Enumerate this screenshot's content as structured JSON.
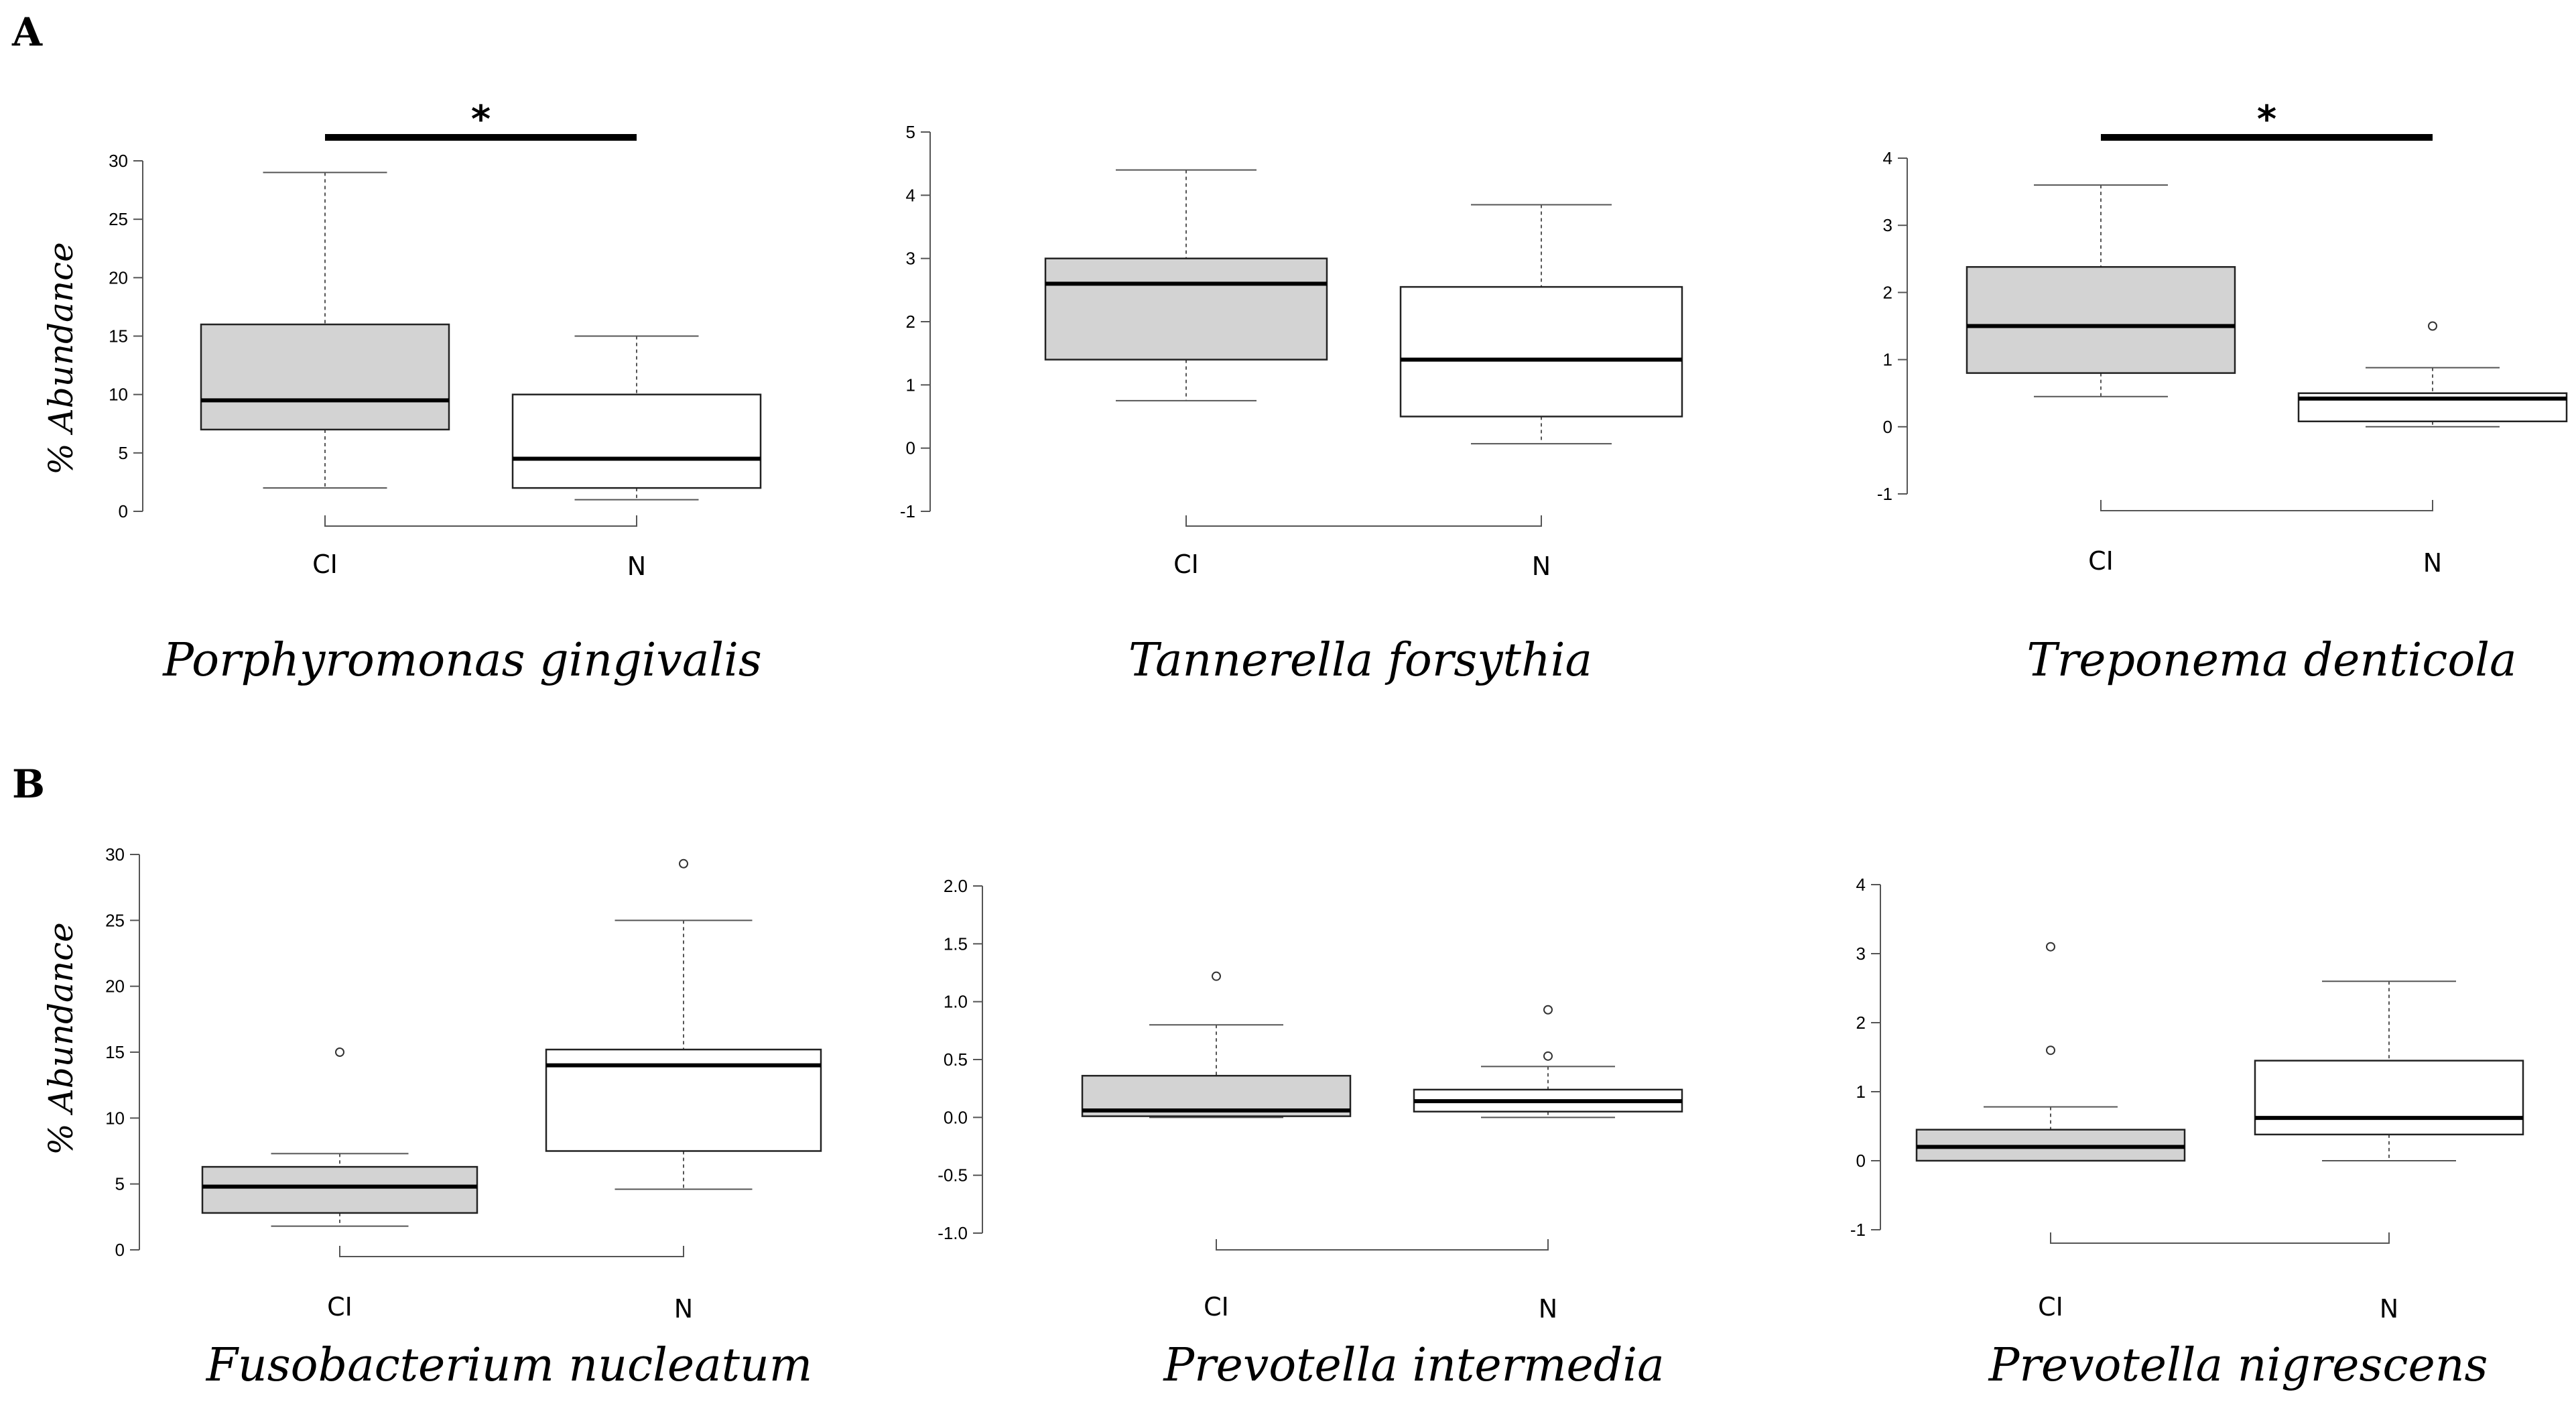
{
  "figure": {
    "panel_a": "A",
    "panel_b": "B"
  },
  "chart_data": [
    {
      "type": "boxplot",
      "panel": "A",
      "title": "Porphyromonas gingivalis",
      "ylabel": "% Abundance",
      "ylim": [
        0,
        30
      ],
      "yticks": [
        0,
        5,
        10,
        15,
        20,
        25,
        30
      ],
      "categories": [
        "CI",
        "N"
      ],
      "boxes": [
        {
          "name": "CI",
          "fill": "#d3d3d3",
          "min": 2,
          "q1": 7,
          "median": 9.5,
          "q3": 16,
          "max": 29,
          "outliers": []
        },
        {
          "name": "N",
          "fill": "#ffffff",
          "min": 1,
          "q1": 2,
          "median": 4.5,
          "q3": 10,
          "max": 15,
          "outliers": []
        }
      ],
      "significance": "*"
    },
    {
      "type": "boxplot",
      "panel": "A",
      "title": "Tannerella forsythia",
      "ylabel": "",
      "ylim": [
        -1,
        5
      ],
      "yticks": [
        -1,
        0,
        1,
        2,
        3,
        4,
        5
      ],
      "categories": [
        "CI",
        "N"
      ],
      "boxes": [
        {
          "name": "CI",
          "fill": "#d3d3d3",
          "min": 0.75,
          "q1": 1.4,
          "median": 2.6,
          "q3": 3.0,
          "max": 4.4,
          "outliers": []
        },
        {
          "name": "N",
          "fill": "#ffffff",
          "min": 0.07,
          "q1": 0.5,
          "median": 1.4,
          "q3": 2.55,
          "max": 3.85,
          "outliers": []
        }
      ],
      "significance": ""
    },
    {
      "type": "boxplot",
      "panel": "A",
      "title": "Treponema denticola",
      "ylabel": "",
      "ylim": [
        -1,
        4
      ],
      "yticks": [
        -1,
        0,
        1,
        2,
        3,
        4
      ],
      "categories": [
        "CI",
        "N"
      ],
      "boxes": [
        {
          "name": "CI",
          "fill": "#d3d3d3",
          "min": 0.45,
          "q1": 0.8,
          "median": 1.5,
          "q3": 2.38,
          "max": 3.6,
          "outliers": []
        },
        {
          "name": "N",
          "fill": "#ffffff",
          "min": 0.0,
          "q1": 0.08,
          "median": 0.42,
          "q3": 0.5,
          "max": 0.88,
          "outliers": [
            1.5
          ]
        }
      ],
      "significance": "*"
    },
    {
      "type": "boxplot",
      "panel": "B",
      "title": "Fusobacterium nucleatum",
      "ylabel": "% Abundance",
      "ylim": [
        0,
        30
      ],
      "yticks": [
        0,
        5,
        10,
        15,
        20,
        25,
        30
      ],
      "categories": [
        "CI",
        "N"
      ],
      "boxes": [
        {
          "name": "CI",
          "fill": "#d3d3d3",
          "min": 1.8,
          "q1": 2.8,
          "median": 4.8,
          "q3": 6.3,
          "max": 7.3,
          "outliers": [
            15
          ]
        },
        {
          "name": "N",
          "fill": "#ffffff",
          "min": 4.6,
          "q1": 7.5,
          "median": 14,
          "q3": 15.2,
          "max": 25,
          "outliers": [
            29.3
          ]
        }
      ],
      "significance": ""
    },
    {
      "type": "boxplot",
      "panel": "B",
      "title": "Prevotella intermedia",
      "ylabel": "",
      "ylim": [
        -1.0,
        2.0
      ],
      "yticks": [
        -1.0,
        -0.5,
        0.0,
        0.5,
        1.0,
        1.5,
        2.0
      ],
      "tick_labels": [
        "-1.0",
        "-0.5",
        "0.0",
        "0.5",
        "1.0",
        "1.5",
        "2.0"
      ],
      "categories": [
        "CI",
        "N"
      ],
      "boxes": [
        {
          "name": "CI",
          "fill": "#d3d3d3",
          "min": 0.0,
          "q1": 0.01,
          "median": 0.06,
          "q3": 0.36,
          "max": 0.8,
          "outliers": [
            1.22
          ]
        },
        {
          "name": "N",
          "fill": "#ffffff",
          "min": 0.0,
          "q1": 0.05,
          "median": 0.14,
          "q3": 0.24,
          "max": 0.44,
          "outliers": [
            0.53,
            0.93
          ]
        }
      ],
      "significance": ""
    },
    {
      "type": "boxplot",
      "panel": "B",
      "title": "Prevotella nigrescens",
      "ylabel": "",
      "ylim": [
        -1,
        4
      ],
      "yticks": [
        -1,
        0,
        1,
        2,
        3,
        4
      ],
      "categories": [
        "CI",
        "N"
      ],
      "boxes": [
        {
          "name": "CI",
          "fill": "#d3d3d3",
          "min": 0.0,
          "q1": 0.0,
          "median": 0.2,
          "q3": 0.45,
          "max": 0.78,
          "outliers": [
            1.6,
            3.1
          ]
        },
        {
          "name": "N",
          "fill": "#ffffff",
          "min": 0.0,
          "q1": 0.38,
          "median": 0.62,
          "q3": 1.45,
          "max": 2.6,
          "outliers": []
        }
      ],
      "significance": ""
    }
  ]
}
